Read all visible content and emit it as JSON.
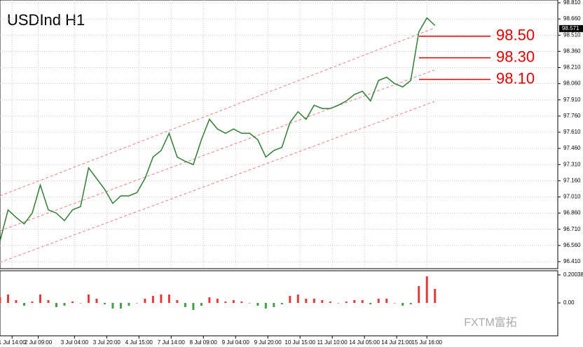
{
  "chart_data": {
    "type": "line",
    "title": "USDInd  H1",
    "color": "#2e7d32",
    "grid": true,
    "x": [
      0,
      4,
      8,
      12,
      16,
      20,
      24,
      28,
      32,
      36,
      40,
      44,
      48,
      52,
      56,
      60,
      64,
      68,
      72,
      76,
      80,
      84,
      88,
      92,
      96,
      100,
      104,
      108,
      112,
      116,
      120,
      124,
      128,
      132,
      136,
      140,
      144,
      148,
      152,
      156,
      160,
      164,
      168,
      172,
      176,
      180,
      184,
      188,
      192,
      196,
      200,
      204,
      208,
      212,
      216
    ],
    "values": [
      96.6,
      96.89,
      96.82,
      96.76,
      96.86,
      97.12,
      96.89,
      96.86,
      96.79,
      96.89,
      96.92,
      97.28,
      97.18,
      97.08,
      96.95,
      97.02,
      97.02,
      97.05,
      97.18,
      97.38,
      97.44,
      97.6,
      97.38,
      97.34,
      97.31,
      97.54,
      97.73,
      97.64,
      97.6,
      97.64,
      97.6,
      97.6,
      97.54,
      97.38,
      97.44,
      97.47,
      97.7,
      97.8,
      97.73,
      97.86,
      97.83,
      97.83,
      97.86,
      97.9,
      97.96,
      97.99,
      97.9,
      98.09,
      98.12,
      98.06,
      98.03,
      98.09,
      98.54,
      98.67,
      98.6
    ],
    "xlim": [
      0,
      277
    ],
    "xticks": [
      {
        "value": 6,
        "label": "1 Jul 14:00"
      },
      {
        "value": 19,
        "label": "2 Jul 09:00"
      },
      {
        "value": 37,
        "label": "3 Jul 04:00"
      },
      {
        "value": 53,
        "label": "3 Jul 20:00"
      },
      {
        "value": 69,
        "label": "4 Jul 15:00"
      },
      {
        "value": 85,
        "label": "7 Jul 14:00"
      },
      {
        "value": 101,
        "label": "8 Jul 09:00"
      },
      {
        "value": 117,
        "label": "9 Jul 04:00"
      },
      {
        "value": 133,
        "label": "9 Jul 20:00"
      },
      {
        "value": 149,
        "label": "10 Jul 15:00"
      },
      {
        "value": 165,
        "label": "11 Jul 10:00"
      },
      {
        "value": 181,
        "label": "14 Jul 05:00"
      },
      {
        "value": 197,
        "label": "14 Jul 21:00"
      },
      {
        "value": 212,
        "label": "15 Jul 16:00"
      }
    ],
    "ylim": [
      96.345,
      98.836
    ],
    "yticks": [
      {
        "value": 96.41,
        "label": "96.410"
      },
      {
        "value": 96.56,
        "label": "96.560"
      },
      {
        "value": 96.71,
        "label": "96.710"
      },
      {
        "value": 96.86,
        "label": "96.860"
      },
      {
        "value": 97.01,
        "label": "97.010"
      },
      {
        "value": 97.16,
        "label": "97.160"
      },
      {
        "value": 97.31,
        "label": "97.310"
      },
      {
        "value": 97.46,
        "label": "97.460"
      },
      {
        "value": 97.61,
        "label": "97.610"
      },
      {
        "value": 97.76,
        "label": "97.760"
      },
      {
        "value": 97.91,
        "label": "97.910"
      },
      {
        "value": 98.06,
        "label": "98.060"
      },
      {
        "value": 98.21,
        "label": "98.210"
      },
      {
        "value": 98.36,
        "label": "98.360"
      },
      {
        "value": 98.51,
        "label": "98.510"
      },
      {
        "value": 98.66,
        "label": "98.660"
      },
      {
        "value": 98.81,
        "label": "98.810"
      }
    ],
    "levels": [
      {
        "value": 98.5,
        "label": "98.50"
      },
      {
        "value": 98.3,
        "label": "98.30"
      },
      {
        "value": 98.1,
        "label": "98.10"
      }
    ],
    "level_color": "#e00000",
    "current_price": {
      "value": 98.571,
      "label": "98.571"
    },
    "macd": {
      "histogram": [
        0.04,
        0.06,
        0.02,
        -0.02,
        0.01,
        0.06,
        0.02,
        -0.03,
        -0.02,
        0.01,
        0.0,
        0.06,
        0.03,
        -0.01,
        -0.04,
        -0.04,
        -0.02,
        0.0,
        0.03,
        0.05,
        0.06,
        0.06,
        0.02,
        -0.03,
        -0.05,
        -0.02,
        0.04,
        0.03,
        0.01,
        0.02,
        0.01,
        0.0,
        -0.02,
        -0.04,
        -0.03,
        -0.01,
        0.05,
        0.06,
        0.03,
        0.03,
        0.02,
        0.01,
        0.0,
        0.01,
        0.02,
        0.02,
        -0.01,
        0.03,
        0.03,
        0.0,
        -0.02,
        -0.01,
        0.12,
        0.19,
        0.1
      ],
      "up_color": "#e53935",
      "down_color": "#43a047",
      "ylim": [
        -0.235,
        0.23
      ],
      "yticks": [
        {
          "value": 0.20038,
          "label": "0.20038"
        },
        {
          "value": 0,
          "label": "0.00"
        }
      ]
    },
    "watermark": "FXTM富拓"
  }
}
